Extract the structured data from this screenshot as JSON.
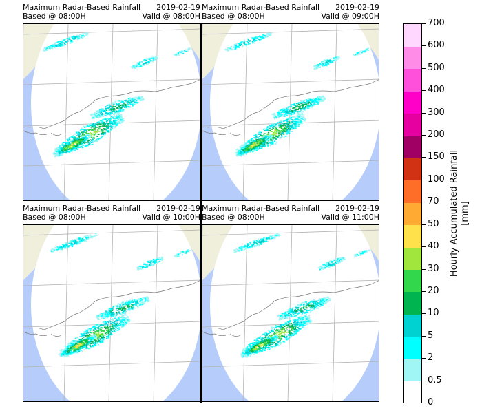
{
  "panels": [
    {
      "title": "Maximum Radar-Based Rainfall",
      "date": "2019-02-19",
      "based": "Based @ 08:00H",
      "valid": "Valid @ 08:00H"
    },
    {
      "title": "Maximum Radar-Based Rainfall",
      "date": "2019-02-19",
      "based": "Based @ 08:00H",
      "valid": "Valid @ 09:00H"
    },
    {
      "title": "Maximum Radar-Based Rainfall",
      "date": "2019-02-19",
      "based": "Based @ 08:00H",
      "valid": "Valid @ 10:00H"
    },
    {
      "title": "Maximum Radar-Based Rainfall",
      "date": "2019-02-19",
      "based": "Based @ 08:00H",
      "valid": "Valid @ 11:00H"
    }
  ],
  "colorbar": {
    "title_line1": "Hourly Accumulated Rainfall",
    "title_line2": "[mm]",
    "levels": [
      "0",
      "0.5",
      "2",
      "5",
      "10",
      "20",
      "30",
      "40",
      "50",
      "70",
      "100",
      "150",
      "200",
      "300",
      "400",
      "500",
      "600",
      "700"
    ],
    "colors": [
      "#ffffff",
      "#a0f5f5",
      "#00ffff",
      "#00d2d2",
      "#00b450",
      "#32d74b",
      "#a0e63c",
      "#ffe14b",
      "#ffaa32",
      "#ff6e28",
      "#d23214",
      "#a00064",
      "#e600a0",
      "#ff00c8",
      "#ff50dc",
      "#ff8ce6",
      "#ffd7ff"
    ]
  },
  "map_colors": {
    "sea_outside": "#b6cdfb",
    "land_outside": "#efefdc",
    "inside": "#ffffff",
    "grid": "#b4b4b4",
    "coast": "#777777"
  }
}
